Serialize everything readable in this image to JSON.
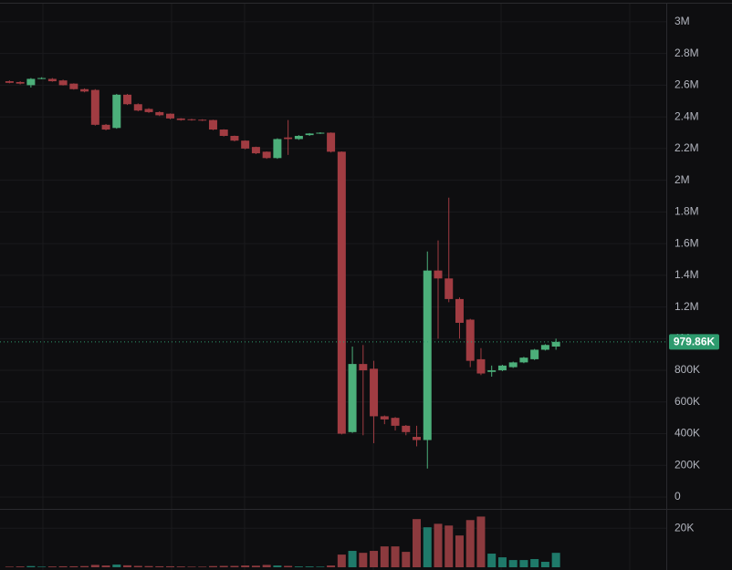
{
  "chart_data": {
    "type": "candlestick",
    "up_color": "#4caf7a",
    "down_color": "#a13c42",
    "open": [
      2625000,
      2620000,
      2600000,
      2640000,
      2640000,
      2630000,
      2610000,
      2575000,
      2570000,
      2350000,
      2330000,
      2540000,
      2480000,
      2450000,
      2430000,
      2420000,
      2390000,
      2385000,
      2382000,
      2380000,
      2320000,
      2280000,
      2250000,
      2210000,
      2180000,
      2140000,
      2270000,
      2260000,
      2285000,
      2295000,
      2300000,
      2180000,
      410000,
      840000,
      810000,
      510000,
      500000,
      450000,
      380000,
      360000,
      1430000,
      1380000,
      1250000,
      1120000,
      870000,
      790000,
      800000,
      820000,
      850000,
      870000,
      930000,
      950000
    ],
    "high": [
      2630000,
      2625000,
      2645000,
      2650000,
      2645000,
      2635000,
      2612000,
      2580000,
      2575000,
      2355000,
      2545000,
      2545000,
      2485000,
      2455000,
      2435000,
      2422000,
      2392000,
      2388000,
      2385000,
      2382000,
      2322000,
      2282000,
      2252000,
      2212000,
      2182000,
      2265000,
      2380000,
      2285000,
      2298000,
      2303000,
      2302000,
      2182000,
      950000,
      960000,
      860000,
      515000,
      505000,
      455000,
      450000,
      1550000,
      1620000,
      1890000,
      1260000,
      1125000,
      940000,
      830000,
      835000,
      855000,
      885000,
      935000,
      965000,
      1000000
    ],
    "low": [
      2612000,
      2605000,
      2585000,
      2638000,
      2622000,
      2598000,
      2572000,
      2555000,
      2345000,
      2315000,
      2325000,
      2475000,
      2435000,
      2425000,
      2405000,
      2385000,
      2376000,
      2376000,
      2374000,
      2316000,
      2276000,
      2245000,
      2195000,
      2165000,
      2135000,
      2135000,
      2160000,
      2255000,
      2280000,
      2292000,
      2175000,
      395000,
      405000,
      390000,
      340000,
      460000,
      420000,
      390000,
      320000,
      180000,
      1000000,
      1230000,
      1000000,
      820000,
      770000,
      760000,
      795000,
      815000,
      845000,
      865000,
      925000,
      930000
    ],
    "close": [
      2615000,
      2610000,
      2640000,
      2645000,
      2625000,
      2600000,
      2575000,
      2560000,
      2350000,
      2320000,
      2540000,
      2480000,
      2440000,
      2430000,
      2410000,
      2390000,
      2380000,
      2380000,
      2378000,
      2320000,
      2280000,
      2250000,
      2200000,
      2170000,
      2140000,
      2260000,
      2260000,
      2280000,
      2295000,
      2300000,
      2180000,
      400000,
      840000,
      800000,
      510000,
      490000,
      450000,
      410000,
      360000,
      1430000,
      1380000,
      1250000,
      1100000,
      860000,
      780000,
      800000,
      830000,
      850000,
      880000,
      930000,
      960000,
      979860
    ],
    "ylim": [
      -69000,
      3109000
    ],
    "yticks": [
      0,
      {
        "value": 200000,
        "label": "200K"
      },
      {
        "value": 400000,
        "label": "400K"
      },
      {
        "value": 600000,
        "label": "600K"
      },
      {
        "value": 800000,
        "label": "800K"
      },
      {
        "value": 1000000,
        "label": "1M"
      },
      {
        "value": 1200000,
        "label": "1.2M"
      },
      {
        "value": 1400000,
        "label": "1.4M"
      },
      {
        "value": 1600000,
        "label": "1.6M"
      },
      {
        "value": 1800000,
        "label": "1.8M"
      },
      {
        "value": 2000000,
        "label": "2M"
      },
      {
        "value": 2200000,
        "label": "2.2M"
      },
      {
        "value": 2400000,
        "label": "2.4M"
      },
      {
        "value": 2600000,
        "label": "2.6M"
      },
      {
        "value": 2800000,
        "label": "2.8M"
      },
      {
        "value": 3000000,
        "label": "3M"
      }
    ],
    "grid": true,
    "last_price": {
      "value": 979860,
      "label": "979.86K"
    },
    "last_price_color": "#2e9b6e",
    "volume": {
      "values": [
        300,
        400,
        600,
        300,
        400,
        500,
        500,
        600,
        1200,
        900,
        1400,
        1000,
        700,
        600,
        500,
        500,
        400,
        300,
        300,
        600,
        700,
        700,
        900,
        800,
        1200,
        900,
        700,
        400,
        400,
        300,
        900,
        6500,
        8400,
        7400,
        8400,
        10700,
        10700,
        7900,
        24700,
        20500,
        22300,
        21400,
        16300,
        24200,
        26000,
        7000,
        5100,
        3700,
        3700,
        4200,
        2800,
        7400
      ],
      "up_color": "#1f7a6a",
      "down_color": "#8c3a3e",
      "ylim": [
        0,
        29000
      ],
      "yticks": [
        {
          "value": 20000,
          "label": "20K"
        }
      ]
    }
  }
}
